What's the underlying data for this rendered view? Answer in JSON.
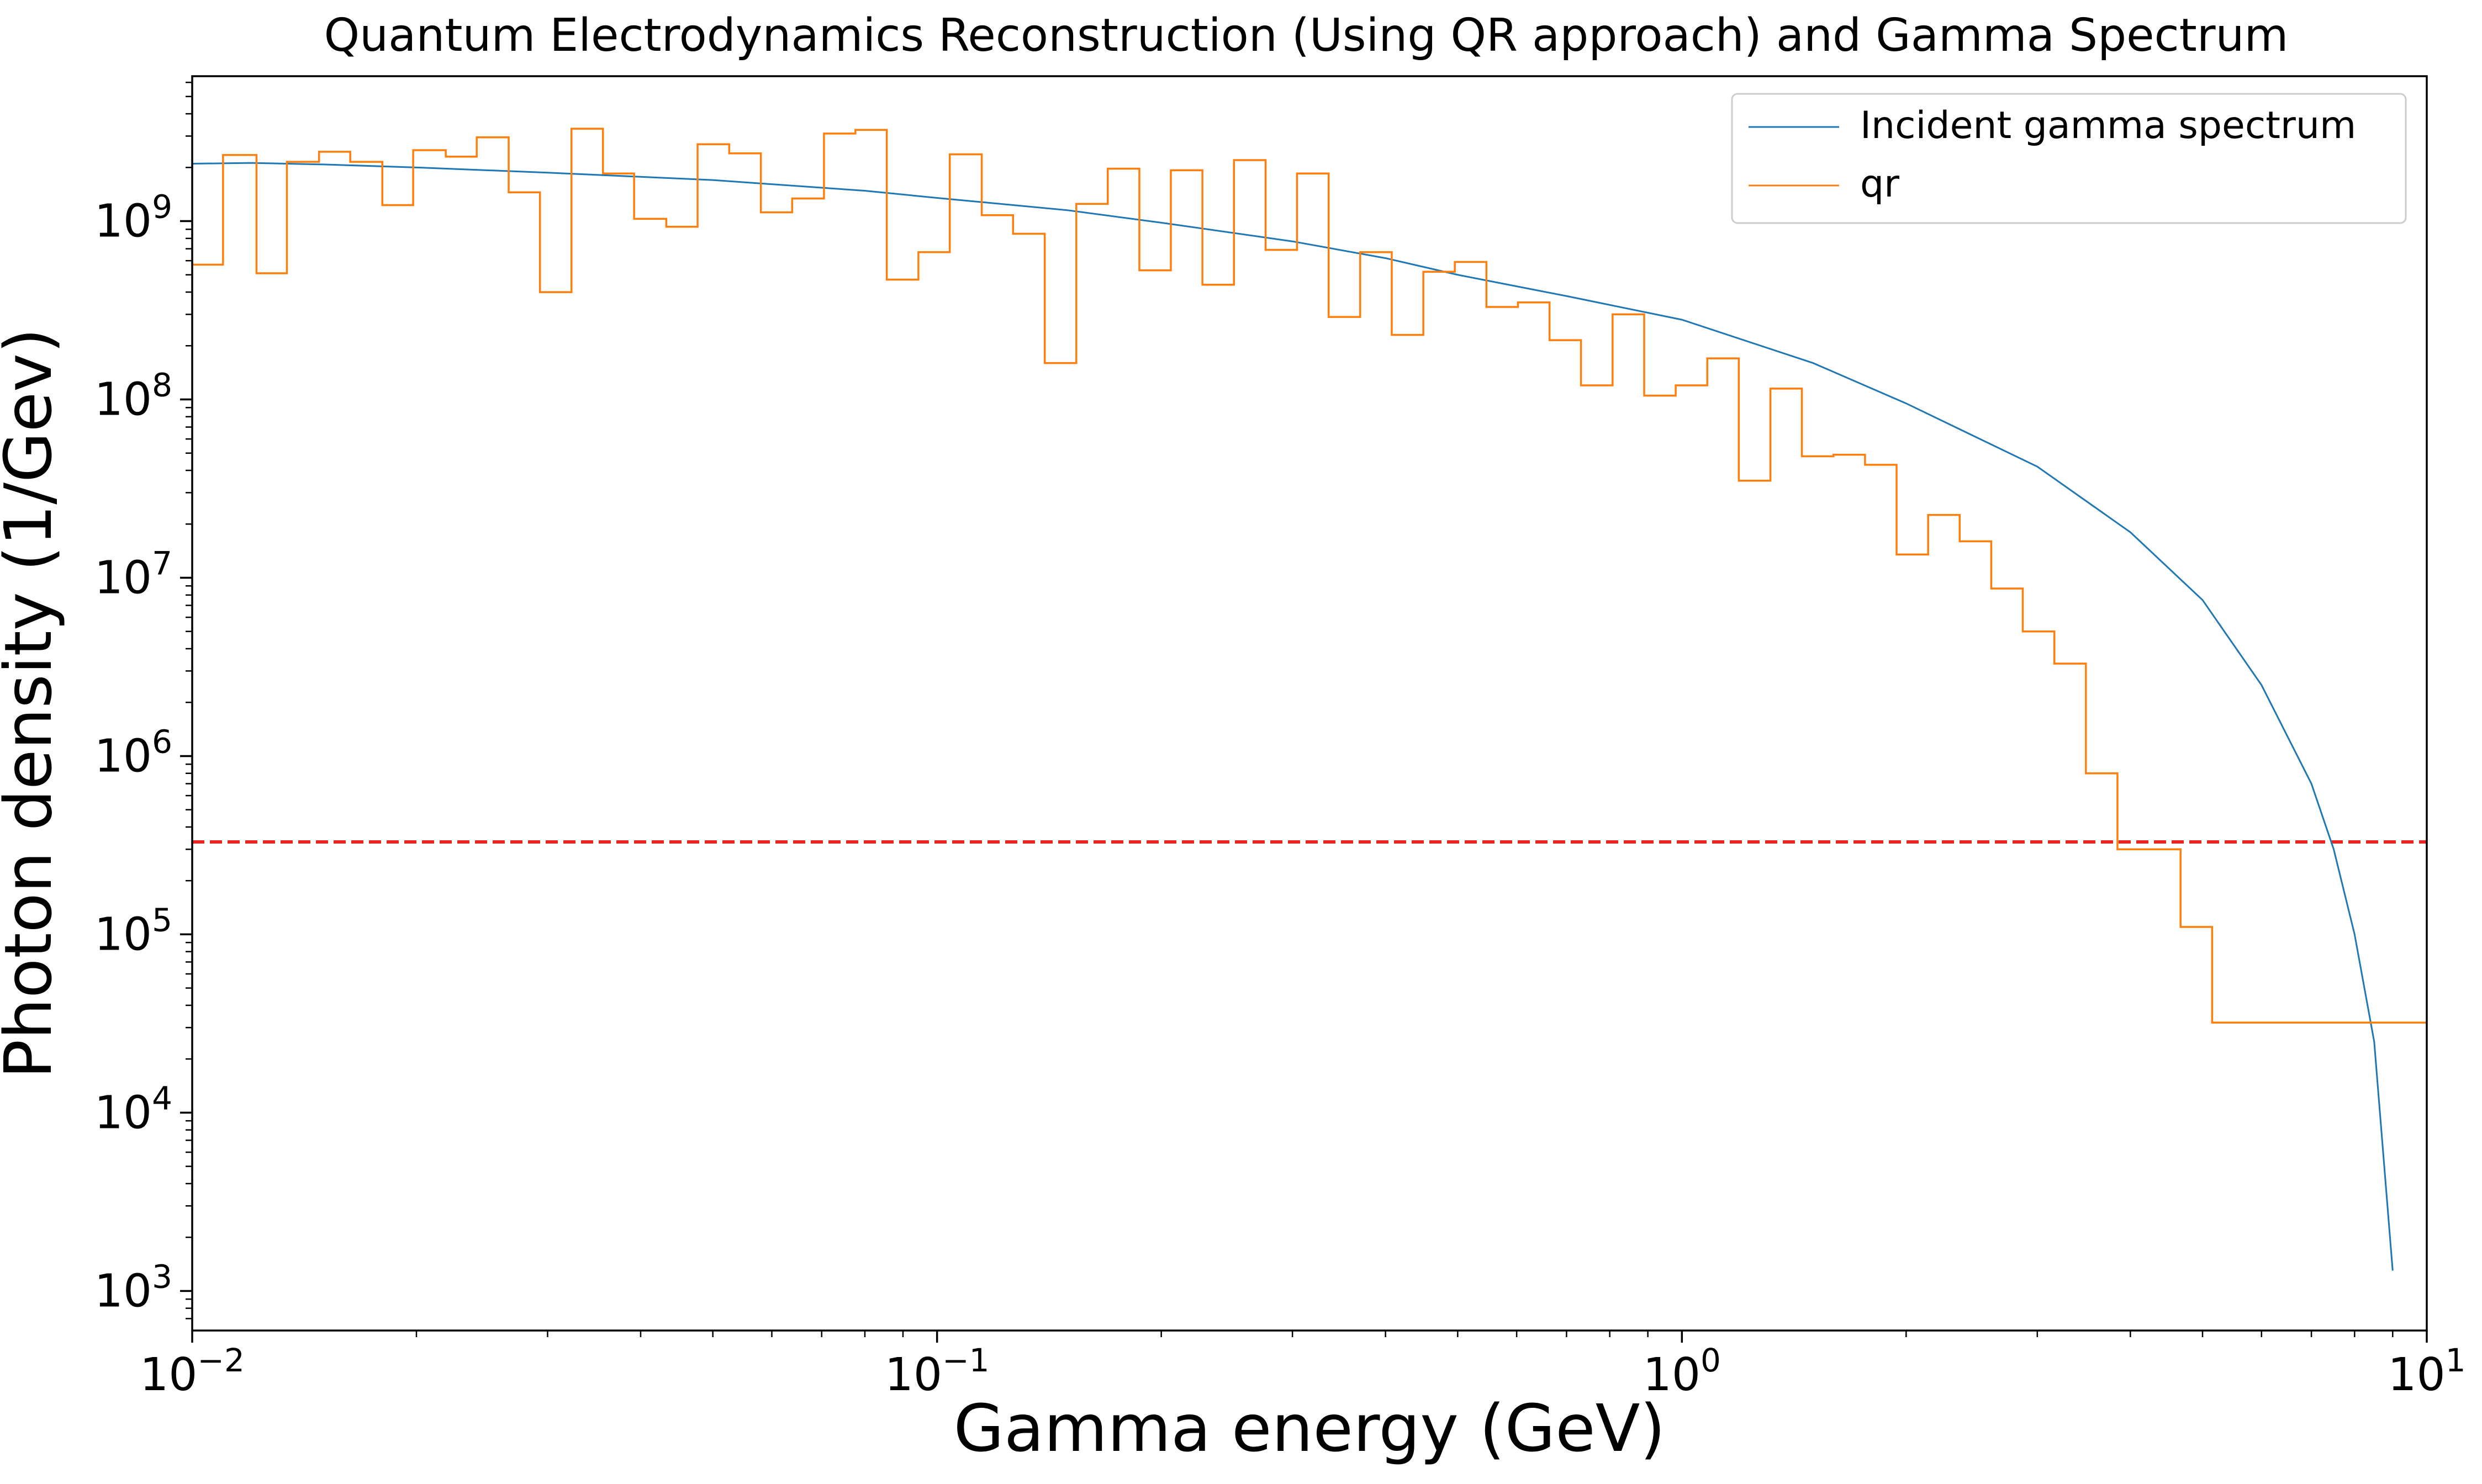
{
  "chart_data": {
    "type": "line",
    "title": "Quantum Electrodynamics Reconstruction (Using QR approach) and Gamma Spectrum",
    "xlabel": "Gamma energy (GeV)",
    "ylabel": "Photon density (1/Gev)",
    "xscale": "log",
    "yscale": "log",
    "xlim": [
      0.01,
      10
    ],
    "ylim": [
      600,
      6500000000
    ],
    "x_ticks": [
      {
        "label": "10",
        "exp": "−2",
        "value": 0.01
      },
      {
        "label": "10",
        "exp": "−1",
        "value": 0.1
      },
      {
        "label": "10",
        "exp": "0",
        "value": 1
      },
      {
        "label": "10",
        "exp": "1",
        "value": 10
      }
    ],
    "y_ticks": [
      {
        "label": "10",
        "exp": "3",
        "value": 1000
      },
      {
        "label": "10",
        "exp": "4",
        "value": 10000
      },
      {
        "label": "10",
        "exp": "5",
        "value": 100000
      },
      {
        "label": "10",
        "exp": "6",
        "value": 1000000
      },
      {
        "label": "10",
        "exp": "7",
        "value": 10000000
      },
      {
        "label": "10",
        "exp": "8",
        "value": 100000000
      },
      {
        "label": "10",
        "exp": "9",
        "value": 1000000000
      }
    ],
    "legend_position": "top-right",
    "threshold": {
      "y": 330000,
      "color": "#e8261f",
      "style": "dashed"
    },
    "series": [
      {
        "name": "Incident gamma spectrum",
        "kind": "line",
        "color": "#1f77b4",
        "x": [
          0.01,
          0.012,
          0.015,
          0.02,
          0.03,
          0.05,
          0.08,
          0.1,
          0.15,
          0.2,
          0.3,
          0.4,
          0.5,
          0.7,
          1.0,
          1.5,
          2.0,
          3.0,
          4.0,
          5.0,
          6.0,
          7.0,
          7.5,
          8.0,
          8.5,
          9.0
        ],
        "values": [
          2100000000,
          2120000000,
          2080000000,
          2000000000,
          1870000000,
          1700000000,
          1480000000,
          1350000000,
          1150000000,
          980000000,
          770000000,
          620000000,
          500000000,
          380000000,
          280000000,
          160000000,
          95000000,
          42000000,
          18000000,
          7500000,
          2500000,
          700000,
          300000,
          100000,
          25000,
          1300
        ]
      },
      {
        "name": "qr",
        "kind": "step",
        "color": "#ff7f0e",
        "bin_edges": [
          0.01,
          0.011,
          0.0122,
          0.0134,
          0.0148,
          0.0163,
          0.018,
          0.0198,
          0.0219,
          0.0241,
          0.0266,
          0.0293,
          0.0323,
          0.0356,
          0.0392,
          0.0433,
          0.0477,
          0.0526,
          0.058,
          0.0639,
          0.0705,
          0.0777,
          0.0856,
          0.0944,
          0.104,
          0.1148,
          0.1265,
          0.1395,
          0.1538,
          0.1695,
          0.1869,
          0.206,
          0.2271,
          0.2504,
          0.2761,
          0.3043,
          0.3355,
          0.3699,
          0.4078,
          0.4496,
          0.4956,
          0.5464,
          0.6024,
          0.6641,
          0.7321,
          0.8071,
          0.8899,
          0.981,
          1.0815,
          1.1923,
          1.3145,
          1.4491,
          1.5976,
          1.7613,
          1.9418,
          2.1407,
          2.36,
          2.6018,
          2.8684,
          3.1623,
          3.4863,
          3.8435,
          4.2373,
          4.6714,
          5.1501,
          5.6777,
          6.2595,
          6.9008,
          7.6079,
          8.3873,
          9.2467,
          10.0
        ],
        "values": [
          570000000,
          2350000000,
          510000000,
          2150000000,
          2450000000,
          2150000000,
          1230000000,
          2500000000,
          2300000000,
          2950000000,
          1450000000,
          400000000,
          3300000000,
          1850000000,
          1030000000,
          930000000,
          2700000000,
          2400000000,
          1120000000,
          1340000000,
          3100000000,
          3250000000,
          470000000,
          670000000,
          2370000000,
          1080000000,
          850000000,
          160000000,
          1250000000,
          1970000000,
          530000000,
          1930000000,
          440000000,
          2200000000,
          690000000,
          1850000000,
          290000000,
          670000000,
          230000000,
          520000000,
          590000000,
          330000000,
          350000000,
          215000000,
          120000000,
          300000000,
          105000000,
          120000000,
          170000000,
          35000000,
          115000000,
          48000000,
          49000000,
          43000000,
          13500000,
          22500000,
          16000000,
          8700000,
          5000000,
          3300000,
          800000,
          300000,
          300000,
          110000,
          32000,
          32000,
          32000,
          32000,
          32000,
          32000,
          32000
        ]
      }
    ]
  }
}
